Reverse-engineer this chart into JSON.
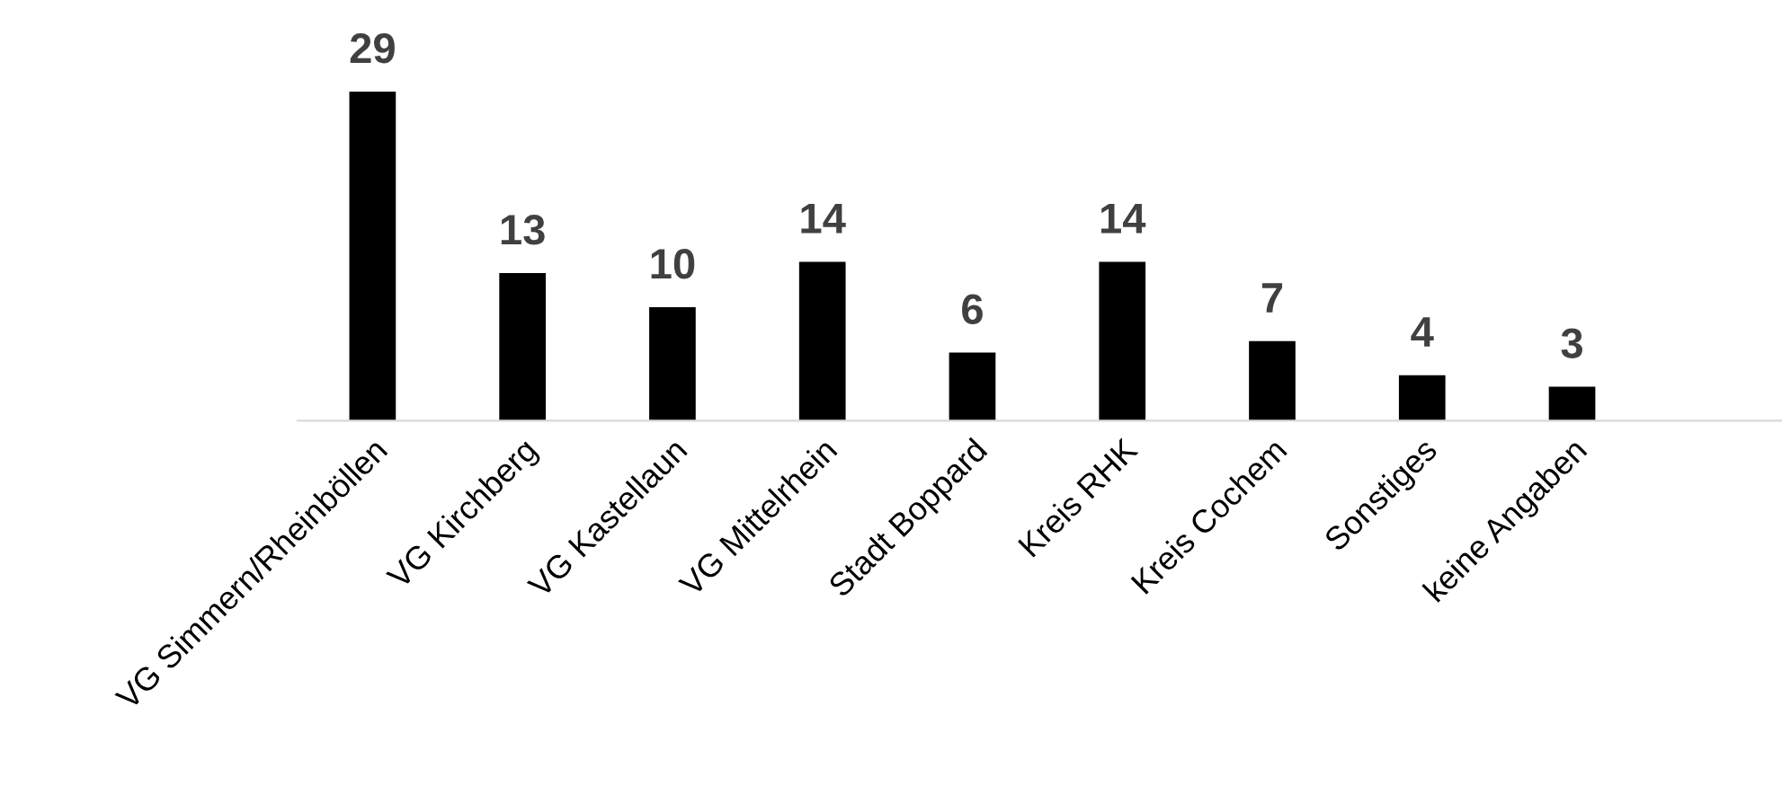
{
  "chart_data": {
    "type": "bar",
    "categories": [
      "VG Simmern/Rheinböllen",
      "VG Kirchberg",
      "VG Kastellaun",
      "VG Mittelrhein",
      "Stadt Boppard",
      "Kreis RHK",
      "Kreis Cochem",
      "Sonstiges",
      "keine Angaben"
    ],
    "values": [
      29,
      13,
      10,
      14,
      6,
      14,
      7,
      4,
      3
    ],
    "color": "#000000",
    "data_labels": true,
    "grid": false,
    "legend": false
  }
}
